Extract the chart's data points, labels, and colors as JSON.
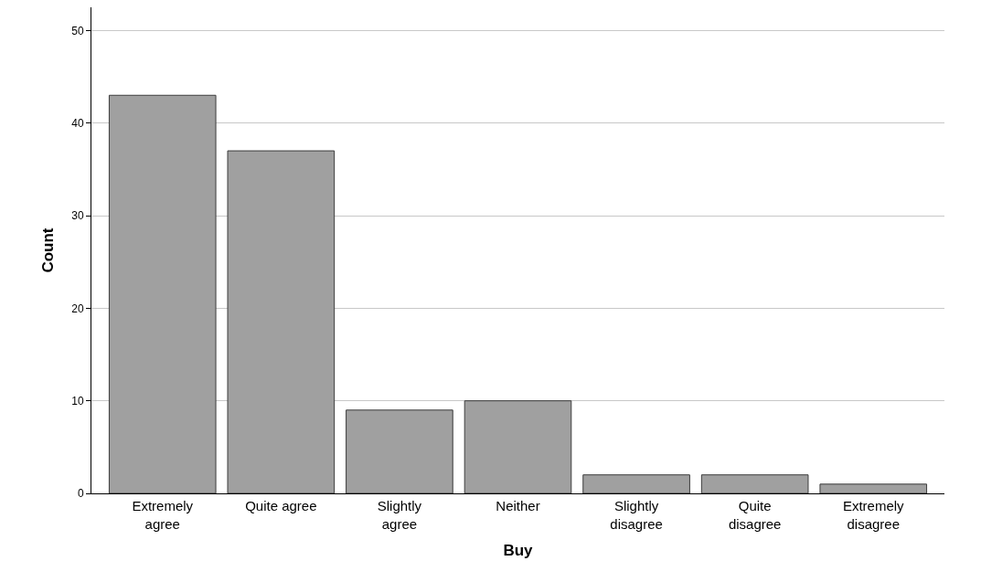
{
  "chart_data": {
    "type": "bar",
    "xlabel": "Buy",
    "ylabel": "Count",
    "categories": [
      "Extremely\nagree",
      "Quite agree",
      "Slightly\nagree",
      "Neither",
      "Slightly\ndisagree",
      "Quite\ndisagree",
      "Extremely\ndisagree"
    ],
    "values": [
      43,
      37,
      9,
      10,
      2,
      2,
      1
    ],
    "color": "#a0a0a0",
    "ylim": [
      0,
      52.5
    ],
    "yticks": [
      0,
      10,
      20,
      30,
      40,
      50
    ],
    "grid": "y"
  }
}
